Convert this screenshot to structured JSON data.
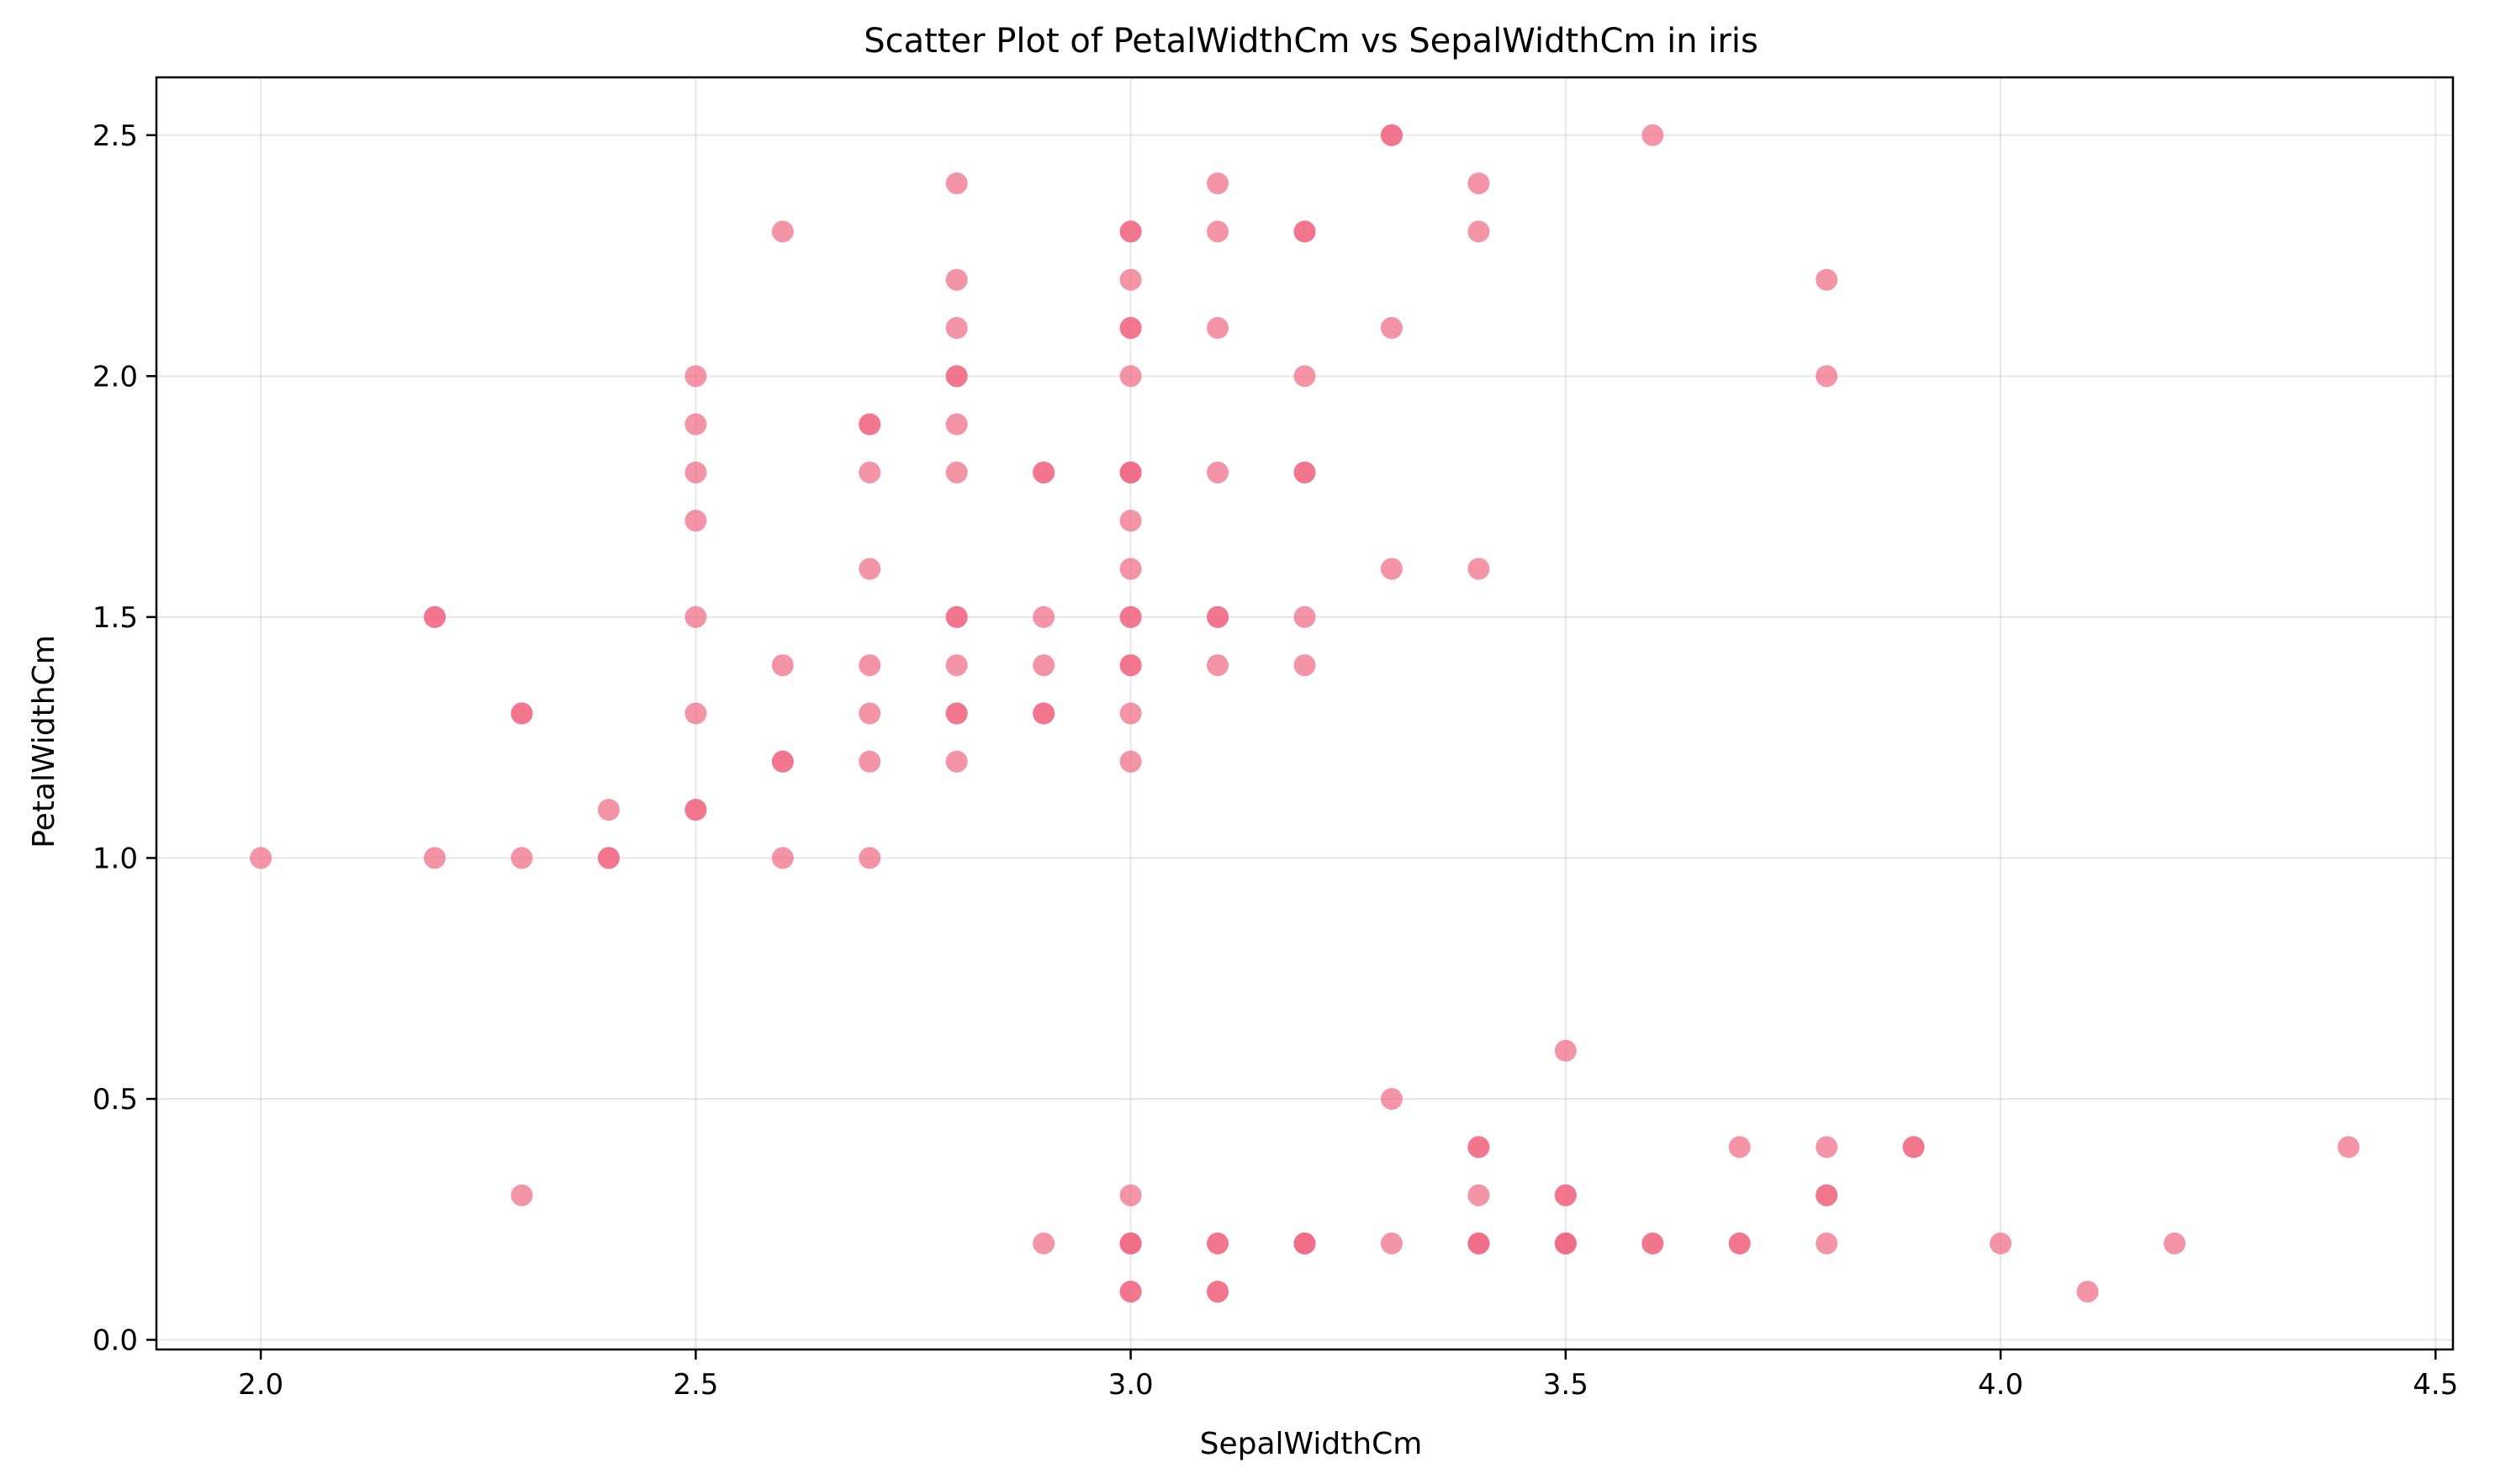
{
  "chart_data": {
    "type": "scatter",
    "title": "Scatter Plot of PetalWidthCm vs SepalWidthCm in iris",
    "xlabel": "SepalWidthCm",
    "ylabel": "PetalWidthCm",
    "xlim": [
      1.88,
      4.52
    ],
    "ylim": [
      -0.02,
      2.62
    ],
    "x_ticks": [
      2.0,
      2.5,
      3.0,
      3.5,
      4.0,
      4.5
    ],
    "y_ticks": [
      0.0,
      0.5,
      1.0,
      1.5,
      2.0,
      2.5
    ],
    "grid": true,
    "point_color": "#f06b85",
    "point_opacity": 0.72,
    "points": [
      {
        "x": 2.0,
        "y": 1.0
      },
      {
        "x": 2.2,
        "y": 1.0
      },
      {
        "x": 2.2,
        "y": 1.5
      },
      {
        "x": 2.2,
        "y": 1.5
      },
      {
        "x": 2.3,
        "y": 0.3
      },
      {
        "x": 2.3,
        "y": 1.0
      },
      {
        "x": 2.3,
        "y": 1.3
      },
      {
        "x": 2.3,
        "y": 1.3
      },
      {
        "x": 2.4,
        "y": 1.0
      },
      {
        "x": 2.4,
        "y": 1.0
      },
      {
        "x": 2.4,
        "y": 1.1
      },
      {
        "x": 2.5,
        "y": 1.1
      },
      {
        "x": 2.5,
        "y": 1.1
      },
      {
        "x": 2.5,
        "y": 1.3
      },
      {
        "x": 2.5,
        "y": 1.5
      },
      {
        "x": 2.5,
        "y": 1.7
      },
      {
        "x": 2.5,
        "y": 1.8
      },
      {
        "x": 2.5,
        "y": 1.9
      },
      {
        "x": 2.5,
        "y": 2.0
      },
      {
        "x": 2.6,
        "y": 1.0
      },
      {
        "x": 2.6,
        "y": 1.2
      },
      {
        "x": 2.6,
        "y": 1.2
      },
      {
        "x": 2.6,
        "y": 1.4
      },
      {
        "x": 2.6,
        "y": 2.3
      },
      {
        "x": 2.7,
        "y": 1.0
      },
      {
        "x": 2.7,
        "y": 1.2
      },
      {
        "x": 2.7,
        "y": 1.3
      },
      {
        "x": 2.7,
        "y": 1.4
      },
      {
        "x": 2.7,
        "y": 1.6
      },
      {
        "x": 2.7,
        "y": 1.8
      },
      {
        "x": 2.7,
        "y": 1.9
      },
      {
        "x": 2.7,
        "y": 1.9
      },
      {
        "x": 2.8,
        "y": 1.2
      },
      {
        "x": 2.8,
        "y": 1.3
      },
      {
        "x": 2.8,
        "y": 1.3
      },
      {
        "x": 2.8,
        "y": 1.4
      },
      {
        "x": 2.8,
        "y": 1.5
      },
      {
        "x": 2.8,
        "y": 1.5
      },
      {
        "x": 2.8,
        "y": 1.8
      },
      {
        "x": 2.8,
        "y": 1.9
      },
      {
        "x": 2.8,
        "y": 2.0
      },
      {
        "x": 2.8,
        "y": 2.0
      },
      {
        "x": 2.8,
        "y": 2.1
      },
      {
        "x": 2.8,
        "y": 2.2
      },
      {
        "x": 2.8,
        "y": 2.4
      },
      {
        "x": 2.9,
        "y": 0.2
      },
      {
        "x": 2.9,
        "y": 1.3
      },
      {
        "x": 2.9,
        "y": 1.3
      },
      {
        "x": 2.9,
        "y": 1.4
      },
      {
        "x": 2.9,
        "y": 1.5
      },
      {
        "x": 2.9,
        "y": 1.8
      },
      {
        "x": 2.9,
        "y": 1.8
      },
      {
        "x": 3.0,
        "y": 0.1
      },
      {
        "x": 3.0,
        "y": 0.1
      },
      {
        "x": 3.0,
        "y": 0.2
      },
      {
        "x": 3.0,
        "y": 0.2
      },
      {
        "x": 3.0,
        "y": 0.2
      },
      {
        "x": 3.0,
        "y": 0.3
      },
      {
        "x": 3.0,
        "y": 1.2
      },
      {
        "x": 3.0,
        "y": 1.3
      },
      {
        "x": 3.0,
        "y": 1.4
      },
      {
        "x": 3.0,
        "y": 1.4
      },
      {
        "x": 3.0,
        "y": 1.5
      },
      {
        "x": 3.0,
        "y": 1.5
      },
      {
        "x": 3.0,
        "y": 1.6
      },
      {
        "x": 3.0,
        "y": 1.7
      },
      {
        "x": 3.0,
        "y": 1.8
      },
      {
        "x": 3.0,
        "y": 1.8
      },
      {
        "x": 3.0,
        "y": 1.8
      },
      {
        "x": 3.0,
        "y": 2.0
      },
      {
        "x": 3.0,
        "y": 2.1
      },
      {
        "x": 3.0,
        "y": 2.1
      },
      {
        "x": 3.0,
        "y": 2.2
      },
      {
        "x": 3.0,
        "y": 2.3
      },
      {
        "x": 3.0,
        "y": 2.3
      },
      {
        "x": 3.1,
        "y": 0.1
      },
      {
        "x": 3.1,
        "y": 0.1
      },
      {
        "x": 3.1,
        "y": 0.2
      },
      {
        "x": 3.1,
        "y": 0.2
      },
      {
        "x": 3.1,
        "y": 1.4
      },
      {
        "x": 3.1,
        "y": 1.5
      },
      {
        "x": 3.1,
        "y": 1.5
      },
      {
        "x": 3.1,
        "y": 1.8
      },
      {
        "x": 3.1,
        "y": 2.1
      },
      {
        "x": 3.1,
        "y": 2.3
      },
      {
        "x": 3.1,
        "y": 2.4
      },
      {
        "x": 3.2,
        "y": 0.2
      },
      {
        "x": 3.2,
        "y": 0.2
      },
      {
        "x": 3.2,
        "y": 0.2
      },
      {
        "x": 3.2,
        "y": 1.4
      },
      {
        "x": 3.2,
        "y": 1.5
      },
      {
        "x": 3.2,
        "y": 1.8
      },
      {
        "x": 3.2,
        "y": 1.8
      },
      {
        "x": 3.2,
        "y": 2.0
      },
      {
        "x": 3.2,
        "y": 2.3
      },
      {
        "x": 3.2,
        "y": 2.3
      },
      {
        "x": 3.3,
        "y": 0.2
      },
      {
        "x": 3.3,
        "y": 0.5
      },
      {
        "x": 3.3,
        "y": 1.6
      },
      {
        "x": 3.3,
        "y": 2.1
      },
      {
        "x": 3.3,
        "y": 2.5
      },
      {
        "x": 3.3,
        "y": 2.5
      },
      {
        "x": 3.4,
        "y": 0.2
      },
      {
        "x": 3.4,
        "y": 0.2
      },
      {
        "x": 3.4,
        "y": 0.2
      },
      {
        "x": 3.4,
        "y": 0.3
      },
      {
        "x": 3.4,
        "y": 0.4
      },
      {
        "x": 3.4,
        "y": 0.4
      },
      {
        "x": 3.4,
        "y": 1.6
      },
      {
        "x": 3.4,
        "y": 2.3
      },
      {
        "x": 3.4,
        "y": 2.4
      },
      {
        "x": 3.5,
        "y": 0.2
      },
      {
        "x": 3.5,
        "y": 0.2
      },
      {
        "x": 3.5,
        "y": 0.2
      },
      {
        "x": 3.5,
        "y": 0.3
      },
      {
        "x": 3.5,
        "y": 0.3
      },
      {
        "x": 3.5,
        "y": 0.6
      },
      {
        "x": 3.6,
        "y": 0.2
      },
      {
        "x": 3.6,
        "y": 0.2
      },
      {
        "x": 3.6,
        "y": 2.5
      },
      {
        "x": 3.7,
        "y": 0.2
      },
      {
        "x": 3.7,
        "y": 0.2
      },
      {
        "x": 3.7,
        "y": 0.4
      },
      {
        "x": 3.8,
        "y": 0.2
      },
      {
        "x": 3.8,
        "y": 0.3
      },
      {
        "x": 3.8,
        "y": 0.3
      },
      {
        "x": 3.8,
        "y": 0.4
      },
      {
        "x": 3.8,
        "y": 2.0
      },
      {
        "x": 3.8,
        "y": 2.2
      },
      {
        "x": 3.9,
        "y": 0.4
      },
      {
        "x": 3.9,
        "y": 0.4
      },
      {
        "x": 4.0,
        "y": 0.2
      },
      {
        "x": 4.1,
        "y": 0.1
      },
      {
        "x": 4.2,
        "y": 0.2
      },
      {
        "x": 4.4,
        "y": 0.4
      }
    ]
  }
}
